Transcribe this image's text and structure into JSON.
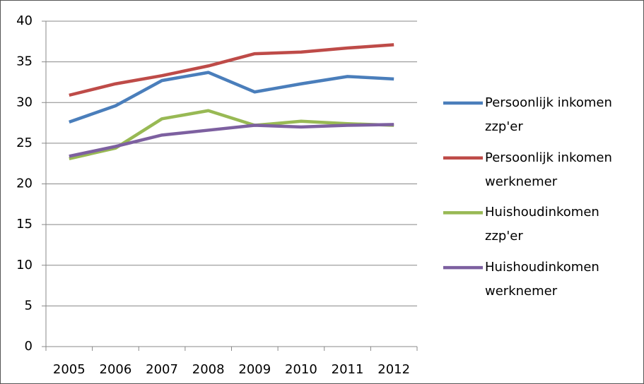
{
  "chart_data": {
    "type": "line",
    "categories": [
      "2005",
      "2006",
      "2007",
      "2008",
      "2009",
      "2010",
      "2011",
      "2012"
    ],
    "series": [
      {
        "name": "Persoonlijk inkomen zzp'er",
        "color": "#4a7ebb",
        "values": [
          27.6,
          29.6,
          32.7,
          33.7,
          31.3,
          32.3,
          33.2,
          32.9
        ]
      },
      {
        "name": "Persoonlijk inkomen werknemer",
        "color": "#be4b48",
        "values": [
          30.9,
          32.3,
          33.3,
          34.5,
          36.0,
          36.2,
          36.7,
          37.1
        ]
      },
      {
        "name": "Huishoudinkomen zzp'er",
        "color": "#98b954",
        "values": [
          23.1,
          24.4,
          28.0,
          29.0,
          27.2,
          27.7,
          27.4,
          27.2
        ]
      },
      {
        "name": "Huishoudinkomen werknemer",
        "color": "#7d60a0",
        "values": [
          23.4,
          24.6,
          26.0,
          26.6,
          27.2,
          27.0,
          27.2,
          27.3
        ]
      }
    ],
    "ylim": [
      0,
      40
    ],
    "yticks": [
      0,
      5,
      10,
      15,
      20,
      25,
      30,
      35,
      40
    ],
    "grid": true,
    "legend": "right"
  }
}
